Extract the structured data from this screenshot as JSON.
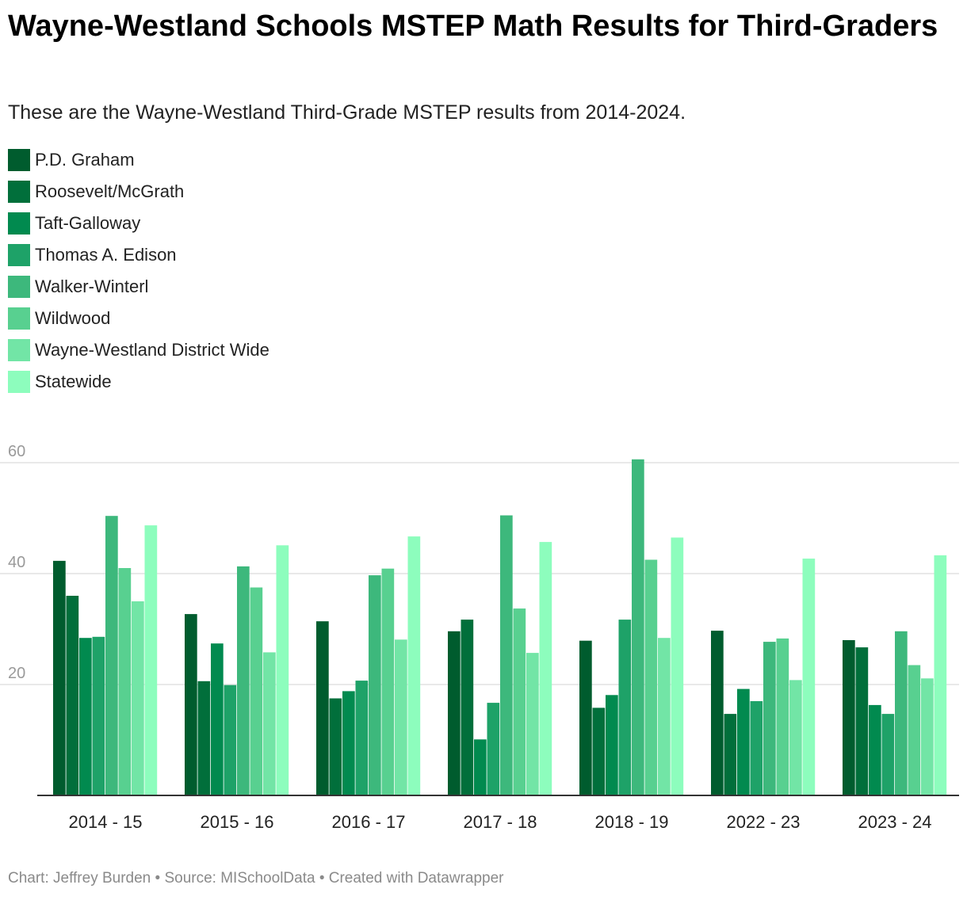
{
  "header": {
    "title": "Wayne-Westland Schools MSTEP Math Results for Third-Graders",
    "subtitle": "These are the Wayne-Westland Third-Grade MSTEP results from 2014-2024."
  },
  "footer": {
    "text": "Chart: Jeffrey Burden • Source: MISchoolData • Created with Datawrapper"
  },
  "chart_data": {
    "type": "bar",
    "title": "Wayne-Westland Schools MSTEP Math Results for Third-Graders",
    "subtitle": "These are the Wayne-Westland Third-Grade MSTEP results from 2014-2024.",
    "xlabel": "",
    "ylabel": "",
    "ylim": [
      0,
      60
    ],
    "yticks": [
      20,
      40,
      60
    ],
    "grid": true,
    "legend_position": "top-left",
    "categories": [
      "2014 - 15",
      "2015 - 16",
      "2016 - 17",
      "2017 - 18",
      "2018 - 19",
      "2022 - 23",
      "2023 - 24"
    ],
    "series": [
      {
        "name": "P.D. Graham",
        "color": "#005c2e",
        "values": [
          42.3,
          32.7,
          31.4,
          29.6,
          27.9,
          29.7,
          28.0
        ]
      },
      {
        "name": "Roosevelt/McGrath",
        "color": "#016f3b",
        "values": [
          36.0,
          20.6,
          17.5,
          31.7,
          15.8,
          14.7,
          26.7
        ]
      },
      {
        "name": "Taft-Galloway",
        "color": "#018a4f",
        "values": [
          28.4,
          27.4,
          18.8,
          10.1,
          18.1,
          19.2,
          16.3
        ]
      },
      {
        "name": "Thomas A. Edison",
        "color": "#1ea268",
        "values": [
          28.6,
          19.9,
          20.7,
          16.7,
          31.7,
          17.0,
          14.7
        ]
      },
      {
        "name": "Walker-Winterl",
        "color": "#3db87c",
        "values": [
          50.4,
          41.3,
          39.7,
          50.5,
          60.6,
          27.7,
          29.6
        ]
      },
      {
        "name": "Wildwood",
        "color": "#58d090",
        "values": [
          41.0,
          37.5,
          40.9,
          33.7,
          42.5,
          28.3,
          23.5
        ]
      },
      {
        "name": "Wayne-Westland District Wide",
        "color": "#72e5a6",
        "values": [
          35.0,
          25.8,
          28.1,
          25.7,
          28.4,
          20.8,
          21.1
        ]
      },
      {
        "name": "Statewide",
        "color": "#8dfdbd",
        "values": [
          48.7,
          45.1,
          46.7,
          45.7,
          46.5,
          42.7,
          43.3
        ]
      }
    ]
  }
}
